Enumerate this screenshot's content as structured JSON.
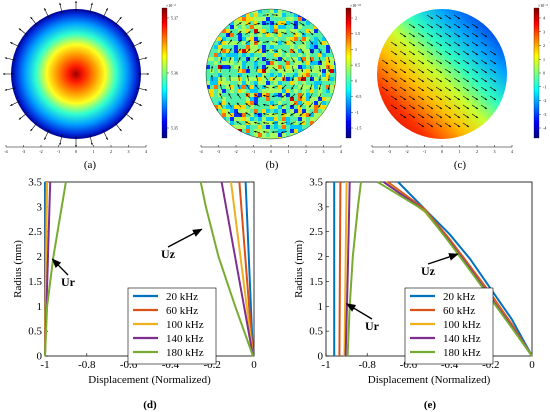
{
  "colors": {
    "s20": "#0072bd",
    "s60": "#d95319",
    "s100": "#edb120",
    "s140": "#7e2f8e",
    "s180": "#77ac30"
  },
  "panels_top": [
    {
      "label": "(a)",
      "type": "heatmap",
      "colorbar_exp": "×10⁻³",
      "colorbar_ticks": [
        "5.37",
        "5.36",
        "5.35"
      ],
      "x_ticks": [
        "-4",
        "-3",
        "-2",
        "-1",
        "0",
        "1",
        "2",
        "3",
        "4"
      ],
      "pattern": "radial",
      "arrows": "radial-outward"
    },
    {
      "label": "(b)",
      "type": "heatmap",
      "colorbar_exp": "×10⁻¹⁶",
      "colorbar_ticks": [
        "2",
        "1.5",
        "1",
        "0.5",
        "0",
        "-0.5",
        "-1",
        "-1.5"
      ],
      "x_ticks": [
        "-4",
        "-3",
        "-2",
        "-1",
        "0",
        "1",
        "2",
        "3",
        "4"
      ],
      "pattern": "noise",
      "arrows": "circulating"
    },
    {
      "label": "(c)",
      "type": "heatmap",
      "colorbar_exp": "×10⁻³",
      "colorbar_ticks": [
        "4",
        "3",
        "2",
        "1",
        "0",
        "-1",
        "-2",
        "-3",
        "-4"
      ],
      "x_ticks": [
        "-4",
        "-3",
        "-2",
        "-1",
        "0",
        "1",
        "2",
        "3",
        "4"
      ],
      "pattern": "gradient",
      "arrows": "uniform"
    }
  ],
  "chart_data": [
    {
      "label": "(d)",
      "type": "line",
      "xlabel": "Displacement (Normalized)",
      "ylabel": "Radius (mm)",
      "xlim": [
        -1,
        0
      ],
      "ylim": [
        0,
        3.5
      ],
      "x_ticks": [
        "-1",
        "-0.8",
        "-0.6",
        "-0.4",
        "-0.2",
        "0"
      ],
      "y_ticks": [
        "0",
        "0.5",
        "1",
        "1.5",
        "2",
        "2.5",
        "3",
        "3.5"
      ],
      "legend_position": "bottom-right",
      "annotations": [
        {
          "text": "Ur",
          "arrow_to": [
            -0.965,
            1.95
          ]
        },
        {
          "text": "Uz",
          "arrow_to": [
            -0.25,
            2.55
          ]
        }
      ],
      "series": [
        {
          "name": "20 kHz",
          "color_key": "s20",
          "ur": [
            [
              -1,
              0
            ],
            [
              -1,
              3.5
            ]
          ],
          "uz": [
            [
              -0.005,
              0
            ],
            [
              -0.04,
              3.5
            ]
          ]
        },
        {
          "name": "60 kHz",
          "color_key": "s60",
          "ur": [
            [
              -1,
              0
            ],
            [
              -0.995,
              3.5
            ]
          ],
          "uz": [
            [
              -0.005,
              0
            ],
            [
              -0.07,
              3.5
            ]
          ]
        },
        {
          "name": "100 kHz",
          "color_key": "s100",
          "ur": [
            [
              -1,
              0
            ],
            [
              -0.99,
              3.5
            ]
          ],
          "uz": [
            [
              -0.005,
              0
            ],
            [
              -0.11,
              3.5
            ]
          ]
        },
        {
          "name": "140 kHz",
          "color_key": "s140",
          "ur": [
            [
              -1,
              0
            ],
            [
              -0.975,
              3.5
            ]
          ],
          "uz": [
            [
              -0.005,
              0
            ],
            [
              -0.155,
              3.5
            ]
          ]
        },
        {
          "name": "180 kHz",
          "color_key": "s180",
          "ur": [
            [
              -1,
              0
            ],
            [
              -0.99,
              1.0
            ],
            [
              -0.96,
              2.0
            ],
            [
              -0.92,
              3.0
            ],
            [
              -0.9,
              3.5
            ]
          ],
          "uz": [
            [
              -0.005,
              0
            ],
            [
              -0.09,
              1.0
            ],
            [
              -0.17,
              2.0
            ],
            [
              -0.23,
              3.0
            ],
            [
              -0.255,
              3.5
            ]
          ]
        }
      ]
    },
    {
      "label": "(e)",
      "type": "line",
      "xlabel": "Displacement (Normalized)",
      "ylabel": "Radius (mm)",
      "xlim": [
        -1,
        0
      ],
      "ylim": [
        0,
        3.5
      ],
      "x_ticks": [
        "-1",
        "-0.8",
        "-0.6",
        "-0.4",
        "-0.2",
        "0"
      ],
      "y_ticks": [
        "0",
        "0.5",
        "1",
        "1.5",
        "2",
        "2.5",
        "3",
        "3.5"
      ],
      "legend_position": "bottom-center",
      "annotations": [
        {
          "text": "Uz",
          "arrow_to": [
            -0.36,
            2.05
          ]
        },
        {
          "text": "Ur",
          "arrow_to": [
            -0.9,
            1.05
          ]
        }
      ],
      "series": [
        {
          "name": "20 kHz",
          "color_key": "s20",
          "ur": [
            [
              -0.96,
              0
            ],
            [
              -0.96,
              3.5
            ]
          ],
          "uz": [
            [
              0,
              0
            ],
            [
              -0.1,
              0.75
            ],
            [
              -0.2,
              1.35
            ],
            [
              -0.3,
              1.95
            ],
            [
              -0.4,
              2.45
            ],
            [
              -0.52,
              2.95
            ],
            [
              -0.65,
              3.5
            ]
          ]
        },
        {
          "name": "60 kHz",
          "color_key": "s60",
          "ur": [
            [
              -0.935,
              0
            ],
            [
              -0.93,
              3.5
            ]
          ],
          "uz": [
            [
              0,
              0
            ],
            [
              -0.1,
              0.65
            ],
            [
              -0.2,
              1.25
            ],
            [
              -0.3,
              1.8
            ],
            [
              -0.4,
              2.35
            ],
            [
              -0.52,
              2.95
            ],
            [
              -0.7,
              3.5
            ]
          ]
        },
        {
          "name": "100 kHz",
          "color_key": "s100",
          "ur": [
            [
              -0.91,
              0
            ],
            [
              -0.9,
              3.5
            ]
          ],
          "uz": [
            [
              0,
              0
            ],
            [
              -0.1,
              0.6
            ],
            [
              -0.2,
              1.2
            ],
            [
              -0.3,
              1.75
            ],
            [
              -0.4,
              2.3
            ],
            [
              -0.52,
              2.9
            ],
            [
              -0.71,
              3.5
            ]
          ]
        },
        {
          "name": "140 kHz",
          "color_key": "s140",
          "ur": [
            [
              -0.905,
              0
            ],
            [
              -0.895,
              1.5
            ],
            [
              -0.885,
              3.5
            ]
          ],
          "uz": [
            [
              0,
              0
            ],
            [
              -0.1,
              0.6
            ],
            [
              -0.2,
              1.18
            ],
            [
              -0.3,
              1.75
            ],
            [
              -0.4,
              2.3
            ],
            [
              -0.52,
              2.92
            ],
            [
              -0.72,
              3.5
            ]
          ]
        },
        {
          "name": "180 kHz",
          "color_key": "s180",
          "ur": [
            [
              -0.895,
              0
            ],
            [
              -0.885,
              1.0
            ],
            [
              -0.87,
              2.0
            ],
            [
              -0.845,
              3.0
            ],
            [
              -0.83,
              3.5
            ]
          ],
          "uz": [
            [
              0,
              0
            ],
            [
              -0.1,
              0.58
            ],
            [
              -0.2,
              1.15
            ],
            [
              -0.3,
              1.72
            ],
            [
              -0.4,
              2.28
            ],
            [
              -0.52,
              2.92
            ],
            [
              -0.75,
              3.5
            ]
          ]
        }
      ]
    }
  ]
}
